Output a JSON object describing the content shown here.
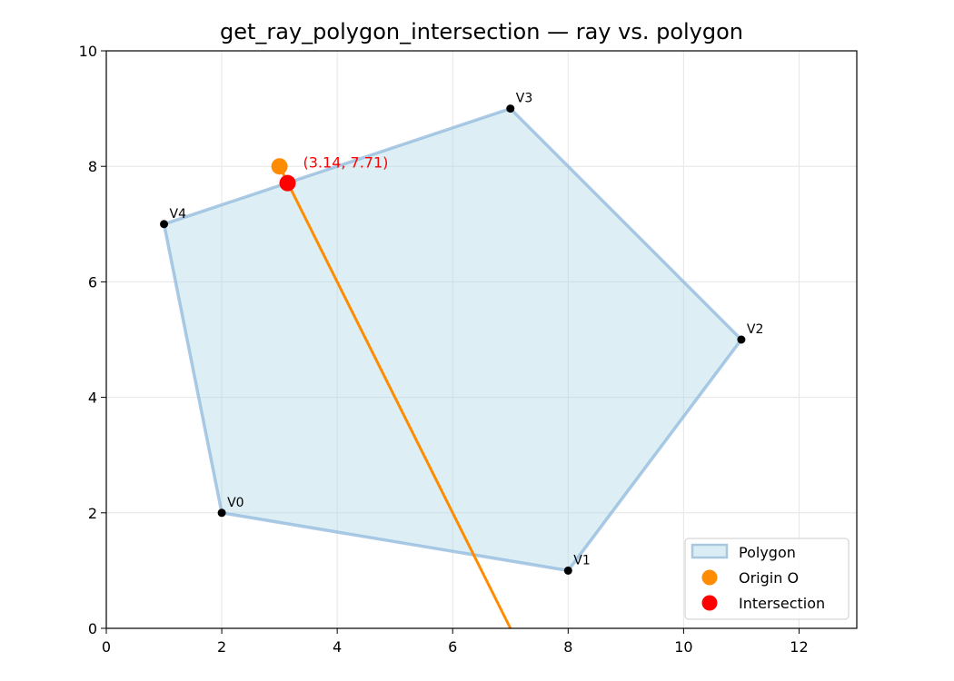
{
  "chart_data": {
    "type": "scatter",
    "title": "get_ray_polygon_intersection — ray vs. polygon",
    "xlabel": "",
    "ylabel": "",
    "xlim": [
      0,
      13
    ],
    "ylim": [
      0,
      10
    ],
    "xticks": [
      0,
      2,
      4,
      6,
      8,
      10,
      12
    ],
    "yticks": [
      0,
      2,
      4,
      6,
      8,
      10
    ],
    "grid": true,
    "polygon": {
      "name": "Polygon",
      "fill_color": "#add8e6",
      "edge_color": "#8fb8dc",
      "vertices": [
        {
          "label": "V0",
          "x": 2,
          "y": 2
        },
        {
          "label": "V1",
          "x": 8,
          "y": 1
        },
        {
          "label": "V2",
          "x": 11,
          "y": 5
        },
        {
          "label": "V3",
          "x": 7,
          "y": 9
        },
        {
          "label": "V4",
          "x": 1,
          "y": 7
        }
      ]
    },
    "ray": {
      "color": "#ff8c00",
      "points": [
        {
          "x": 3.0,
          "y": 8.0
        },
        {
          "x": 7.0,
          "y": 0.0
        }
      ]
    },
    "origin": {
      "name": "Origin O",
      "x": 3.0,
      "y": 8.0,
      "color": "#ff8c00"
    },
    "intersection": {
      "name": "Intersection",
      "x": 3.14,
      "y": 7.71,
      "label": "(3.14, 7.71)",
      "color": "#ff0000"
    },
    "legend": {
      "placement": "lower-right",
      "entries": [
        "Polygon",
        "Origin O",
        "Intersection"
      ]
    }
  }
}
